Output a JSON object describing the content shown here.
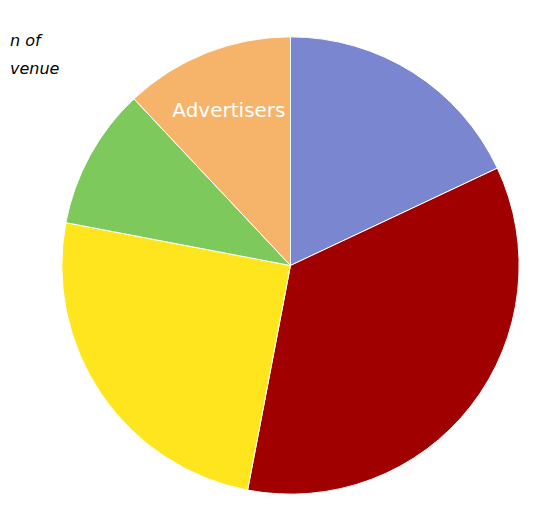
{
  "chart_data": {
    "type": "pie",
    "annotations": [
      "n of",
      "venue"
    ],
    "categories": [
      null,
      null,
      null,
      null,
      "Advertisers"
    ],
    "values": [
      18,
      35,
      25,
      10,
      12
    ],
    "colors": [
      "#7b86d0",
      "#a00000",
      "#ffe51e",
      "#7dc95c",
      "#f6b46a"
    ],
    "data_labels": false
  }
}
